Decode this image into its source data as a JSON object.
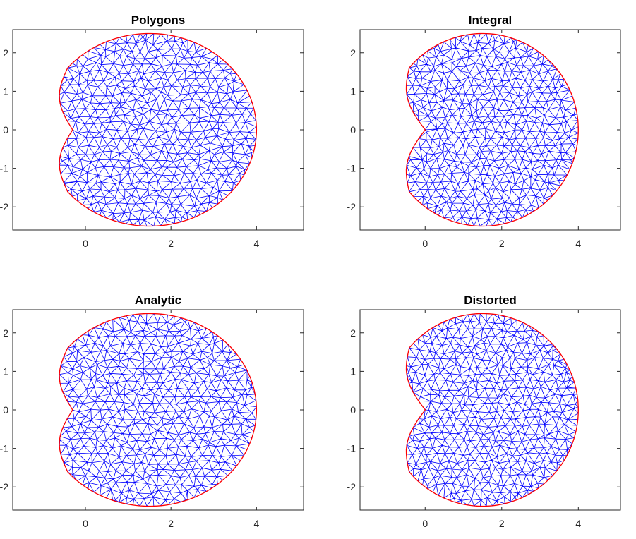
{
  "colors": {
    "mesh": "#0000ff",
    "boundary": "#ff0000",
    "axes": "#262626",
    "background": "#ffffff"
  },
  "chart_data": [
    {
      "type": "scatter",
      "title": "Polygons",
      "xlabel": "",
      "ylabel": "",
      "xlim": [
        -1.7,
        5.1
      ],
      "ylim": [
        -2.6,
        2.6
      ],
      "xticks": [
        "0",
        "2",
        "4"
      ],
      "yticks": [
        "2",
        "1",
        "0",
        "-1",
        "-2"
      ],
      "grid": false,
      "boundary": {
        "shape": "circle with cusped notch",
        "center": [
          1.5,
          0
        ],
        "radius": 2.5,
        "cusp": [
          -0.3,
          0
        ]
      }
    },
    {
      "type": "scatter",
      "title": "Integral",
      "xlabel": "",
      "ylabel": "",
      "xlim": [
        -1.7,
        5.1
      ],
      "ylim": [
        -2.6,
        2.6
      ],
      "xticks": [
        "0",
        "2",
        "4"
      ],
      "yticks": [
        "2",
        "1",
        "0",
        "-1",
        "-2"
      ],
      "grid": false,
      "boundary": {
        "shape": "circle with cusped notch",
        "center": [
          1.5,
          0
        ],
        "radius": 2.5,
        "cusp": [
          0,
          0
        ]
      }
    },
    {
      "type": "scatter",
      "title": "Analytic",
      "xlabel": "",
      "ylabel": "",
      "xlim": [
        -1.7,
        5.1
      ],
      "ylim": [
        -2.6,
        2.6
      ],
      "xticks": [
        "0",
        "2",
        "4"
      ],
      "yticks": [
        "2",
        "1",
        "0",
        "-1",
        "-2"
      ],
      "grid": false,
      "boundary": {
        "shape": "circle with cusped notch",
        "center": [
          1.5,
          0
        ],
        "radius": 2.5,
        "cusp": [
          -0.3,
          0
        ]
      }
    },
    {
      "type": "scatter",
      "title": "Distorted",
      "xlabel": "",
      "ylabel": "",
      "xlim": [
        -1.7,
        5.1
      ],
      "ylim": [
        -2.6,
        2.6
      ],
      "xticks": [
        "0",
        "2",
        "4"
      ],
      "yticks": [
        "2",
        "1",
        "0",
        "-1",
        "-2"
      ],
      "grid": false,
      "boundary": {
        "shape": "circle with cusped notch",
        "center": [
          1.5,
          0
        ],
        "radius": 2.5,
        "cusp": [
          0,
          0
        ]
      }
    }
  ]
}
